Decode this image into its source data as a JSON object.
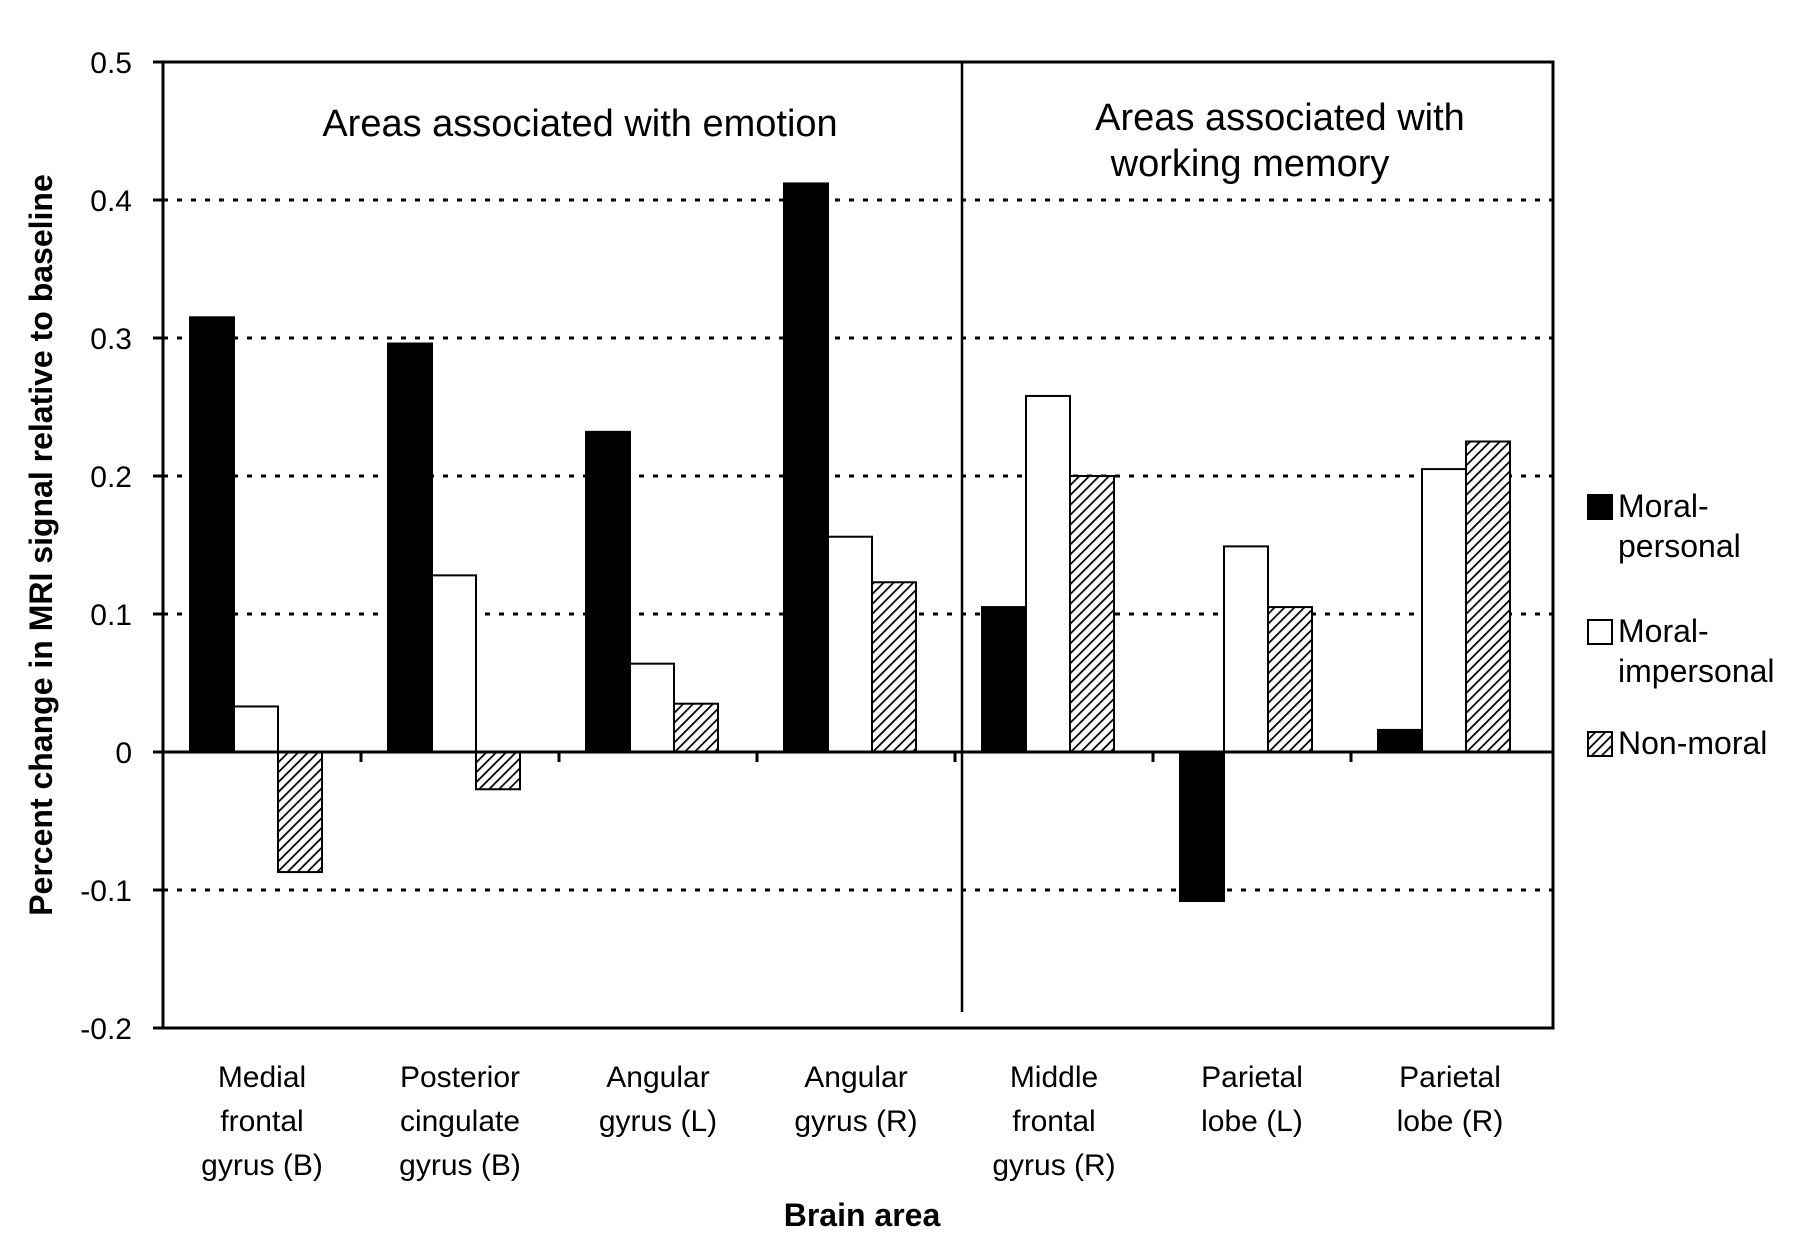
{
  "chart_data": {
    "type": "bar",
    "title": "",
    "xlabel": "Brain area",
    "ylabel": "Percent change in MRI signal relative to baseline",
    "ylim": [
      -0.2,
      0.5
    ],
    "yticks": [
      "0.5",
      "0.4",
      "0.3",
      "0.2",
      "0.1",
      "0",
      "-0.1",
      "-0.2"
    ],
    "yticks_values": [
      0.5,
      0.4,
      0.3,
      0.2,
      0.1,
      0,
      -0.1,
      -0.2
    ],
    "grid": "dotted horizontal at 0.4, 0.3, 0.2, 0.1, -0.1",
    "legend_position": "right",
    "categories": [
      [
        "Medial",
        "frontal",
        "gyrus (B)"
      ],
      [
        "Posterior",
        "cingulate",
        "gyrus (B)"
      ],
      [
        "Angular",
        "gyrus (L)"
      ],
      [
        "Angular",
        "gyrus (R)"
      ],
      [
        "Middle",
        "frontal",
        "gyrus (R)"
      ],
      [
        "Parietal",
        "lobe (L)"
      ],
      [
        "Parietal",
        "lobe (R)"
      ]
    ],
    "series": [
      {
        "name": [
          "Moral-",
          "personal"
        ],
        "style": "solid-black",
        "values": [
          0.315,
          0.296,
          0.232,
          0.412,
          0.105,
          -0.108,
          0.016
        ]
      },
      {
        "name": [
          "Moral-",
          "impersonal"
        ],
        "style": "white",
        "values": [
          0.033,
          0.128,
          0.064,
          0.156,
          0.258,
          0.149,
          0.205
        ]
      },
      {
        "name": [
          "Non-moral"
        ],
        "style": "hatched",
        "values": [
          -0.087,
          -0.027,
          0.035,
          0.123,
          0.2,
          0.105,
          0.225
        ]
      }
    ],
    "regions": [
      {
        "lines": [
          "Areas associated with emotion"
        ]
      },
      {
        "lines": [
          "Areas associated with",
          "working memory"
        ]
      }
    ]
  }
}
